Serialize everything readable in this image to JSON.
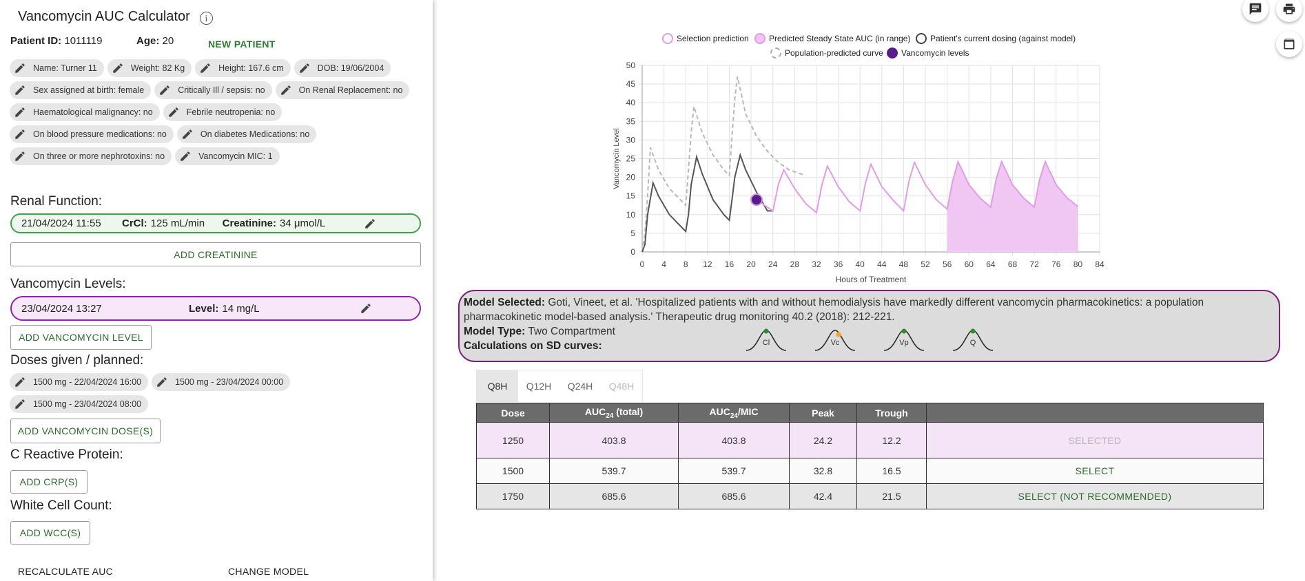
{
  "app": {
    "title": "Vancomycin AUC Calculator",
    "info_icon": "i"
  },
  "patient": {
    "id_label": "Patient ID:",
    "id": "1011119",
    "age_label": "Age:",
    "age": "20",
    "new_patient": "NEW PATIENT",
    "chips": [
      [
        "Name: Turner 11",
        "Weight: 82 Kg",
        "Height: 167.6 cm",
        "DOB: 19/06/2004"
      ],
      [
        "Sex assigned at birth: female",
        "Critically Ill / sepsis: no",
        "On Renal Replacement: no"
      ],
      [
        "Haematological malignancy: no",
        "Febrile neutropenia: no"
      ],
      [
        "On blood pressure medications: no",
        "On diabetes Medications: no"
      ],
      [
        "On three or more nephrotoxins: no",
        "Vancomycin MIC: 1"
      ]
    ]
  },
  "renal": {
    "heading": "Renal Function:",
    "date": "21/04/2024 11:55",
    "crcl_label": "CrCl:",
    "crcl": "125 mL/min",
    "creat_label": "Creatinine:",
    "creat": "34 μmol/L",
    "add_button": "ADD CREATININE"
  },
  "levels": {
    "heading": "Vancomycin Levels:",
    "date": "23/04/2024 13:27",
    "level_label": "Level:",
    "level": "14 mg/L",
    "add_button": "ADD VANCOMYCIN LEVEL"
  },
  "doses": {
    "heading": "Doses given / planned:",
    "items": [
      "1500 mg - 22/04/2024 16:00",
      "1500 mg - 23/04/2024 00:00",
      "1500 mg - 23/04/2024 08:00"
    ],
    "add_button": "ADD VANCOMYCIN DOSE(S)"
  },
  "crp": {
    "heading": "C Reactive Protein:",
    "add_button": "ADD CRP(S)"
  },
  "wcc": {
    "heading": "White Cell Count:",
    "add_button": "ADD WCC(S)"
  },
  "footer": {
    "recalc": "RECALCULATE AUC",
    "change_model": "CHANGE MODEL"
  },
  "legend": {
    "selection": "Selection prediction",
    "steady": "Predicted Steady State AUC (in range)",
    "current": "Patient's current dosing (against model)",
    "population": "Population-predicted curve",
    "levels": "Vancomycin levels"
  },
  "chart_data": {
    "type": "line",
    "xlabel": "Hours of Treatment",
    "ylabel": "Vancomycin Level",
    "xlim": [
      0,
      84
    ],
    "ylim": [
      0,
      50
    ],
    "xticks": [
      "0",
      "4",
      "8",
      "12",
      "16",
      "20",
      "24",
      "28",
      "32",
      "36",
      "40",
      "44",
      "48",
      "52",
      "56",
      "60",
      "64",
      "68",
      "72",
      "76",
      "80",
      "84"
    ],
    "yticks": [
      "0",
      "5",
      "10",
      "15",
      "20",
      "25",
      "30",
      "35",
      "40",
      "45",
      "50"
    ],
    "series": [
      {
        "name": "Patient's current dosing (against model)",
        "x": [
          0,
          0.5,
          1,
          2,
          3,
          5,
          7,
          8,
          8.5,
          9,
          10,
          11,
          13,
          15,
          16,
          16.5,
          17,
          18,
          19,
          21,
          23,
          24
        ],
        "y": [
          0,
          2,
          10,
          18.5,
          15,
          10,
          7,
          5.5,
          10,
          18,
          25.5,
          21,
          14,
          10,
          8.5,
          14,
          20,
          26,
          22,
          16,
          11,
          11
        ]
      },
      {
        "name": "Population-predicted curve",
        "x": [
          0,
          0.5,
          1,
          1.5,
          3,
          5,
          7,
          8,
          8.5,
          9,
          9.5,
          11,
          13,
          15,
          16,
          16.5,
          17,
          17.5,
          19,
          21,
          23,
          25,
          27,
          29,
          30
        ],
        "y": [
          0,
          5,
          15,
          28,
          22,
          17,
          14,
          12.5,
          22,
          32,
          39,
          32,
          26,
          22,
          20.5,
          31,
          41,
          47,
          37,
          31,
          27,
          24,
          22,
          21,
          20.5
        ]
      },
      {
        "name": "Selection prediction",
        "x": [
          21,
          24,
          25,
          26,
          28,
          30,
          32,
          33,
          34,
          36,
          38,
          40,
          41,
          42,
          44,
          46,
          48,
          49,
          50,
          52,
          54,
          56,
          57,
          58,
          60,
          62,
          64,
          65,
          66,
          68,
          70,
          72,
          73,
          74,
          76,
          78,
          80
        ],
        "y": [
          14,
          11,
          18,
          22,
          17,
          13,
          10.5,
          18,
          23,
          17.5,
          13.5,
          11,
          18.5,
          23.5,
          17.5,
          14,
          11,
          19,
          24,
          18,
          14,
          11.5,
          19,
          24.2,
          18,
          14.5,
          12,
          19.5,
          24.2,
          18,
          14.5,
          12,
          19.5,
          24.2,
          18,
          14.5,
          12.2
        ]
      },
      {
        "name": "Predicted Steady State AUC (in range)",
        "type": "area",
        "x": [
          56,
          57,
          58,
          60,
          62,
          64,
          65,
          66,
          68,
          70,
          72,
          73,
          74,
          76,
          78,
          80
        ],
        "y": [
          11.5,
          19,
          24.2,
          18,
          14.5,
          12,
          19.5,
          24.2,
          18,
          14.5,
          12,
          19.5,
          24.2,
          18,
          14.5,
          12.2
        ]
      },
      {
        "name": "Vancomycin levels",
        "type": "scatter",
        "x": [
          21
        ],
        "y": [
          14
        ]
      }
    ]
  },
  "model": {
    "selected_label": "Model Selected:",
    "selected_text": "Goti, Vineet, et al. 'Hospitalized patients with and without hemodialysis have markedly different vancomycin pharmacokinetics: a population pharmacokinetic model-based analysis.' Therapeutic drug monitoring 40.2 (2018): 212-221.",
    "type_label": "Model Type:",
    "type": "Two Compartment",
    "calc_label": "Calculations on SD curves:",
    "params": [
      {
        "label": "Cl",
        "dot": "#2e8b2e"
      },
      {
        "label": "Vc",
        "dot": "#f5a623"
      },
      {
        "label": "Vp",
        "dot": "#2e8b2e"
      },
      {
        "label": "Q",
        "dot": "#2e8b2e"
      }
    ]
  },
  "tabs": [
    "Q8H",
    "Q12H",
    "Q24H",
    "Q48H"
  ],
  "table": {
    "headers": [
      "Dose",
      "AUC",
      "AUC",
      "Peak",
      "Trough",
      ""
    ],
    "h_auc_sub": "24",
    "h_auc_total": "(total)",
    "h_auc_mic": "/MIC",
    "rows": [
      {
        "dose": "1250",
        "auc": "403.8",
        "aucmic": "403.8",
        "peak": "24.2",
        "trough": "12.2",
        "action": "SELECTED"
      },
      {
        "dose": "1500",
        "auc": "539.7",
        "aucmic": "539.7",
        "peak": "32.8",
        "trough": "16.5",
        "action": "SELECT"
      },
      {
        "dose": "1750",
        "auc": "685.6",
        "aucmic": "685.6",
        "peak": "42.4",
        "trough": "21.5",
        "action": "SELECT (NOT RECOMMENDED)"
      }
    ]
  },
  "colors": {
    "green": "#3fa14a",
    "purple": "#8e24aa",
    "pink": "#e39be8",
    "pinkfill": "#f0c6f3",
    "darkpurple": "#5a1b8c"
  }
}
